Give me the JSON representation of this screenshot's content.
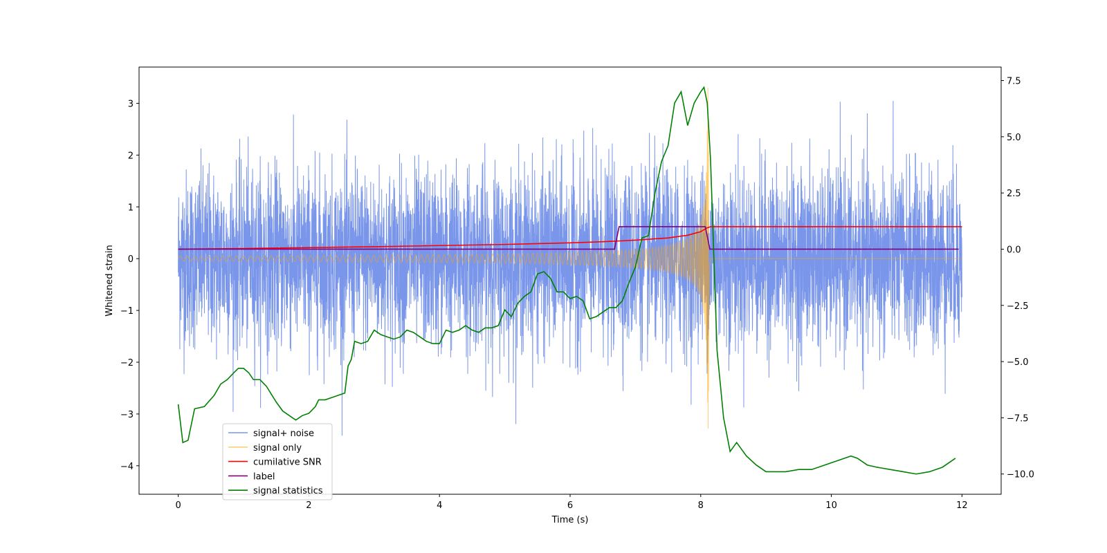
{
  "chart_data": {
    "type": "line",
    "xlabel": "Time (s)",
    "ylabel": "Whitened strain",
    "xlim": [
      -0.6,
      12.6
    ],
    "ylim": [
      -4.55,
      3.7
    ],
    "y2lim": [
      -10.9,
      8.1
    ],
    "xticks": [
      0,
      2,
      4,
      6,
      8,
      10,
      12
    ],
    "yticks": [
      -4,
      -3,
      -2,
      -1,
      0,
      1,
      2,
      3
    ],
    "y2ticks": [
      -10.0,
      -7.5,
      -5.0,
      -2.5,
      0.0,
      2.5,
      5.0,
      7.5
    ],
    "xtick_labels": [
      "0",
      "2",
      "4",
      "6",
      "8",
      "10",
      "12"
    ],
    "ytick_labels": [
      "−4",
      "−3",
      "−2",
      "−1",
      "0",
      "1",
      "2",
      "3"
    ],
    "y2tick_labels": [
      "−10.0",
      "−7.5",
      "−5.0",
      "−2.5",
      "0.0",
      "2.5",
      "5.0",
      "7.5"
    ],
    "legend_position": "lower-left",
    "grid": false,
    "series": [
      {
        "name": "signal+ noise",
        "color": "#4169e1",
        "axis": "left",
        "kind": "noisy_band",
        "x_range": [
          0,
          12
        ],
        "band_top_quiet": 1.9,
        "band_bottom_quiet": -1.9,
        "peak_max": 3.1,
        "peak_min": -3.8
      },
      {
        "name": "signal only",
        "color": "#ffa500",
        "axis": "left",
        "kind": "chirp",
        "x_range": [
          0,
          12
        ],
        "merger_time": 8.12,
        "peak": 3.3,
        "amplitude_start": 0.05
      },
      {
        "name": "cumilative SNR",
        "color": "#ff0000",
        "axis": "right",
        "x": [
          0,
          1,
          2,
          3,
          4,
          5,
          6,
          6.5,
          7,
          7.5,
          7.8,
          8.0,
          8.1,
          8.15,
          12
        ],
        "y": [
          0.0,
          0.03,
          0.07,
          0.11,
          0.16,
          0.21,
          0.28,
          0.33,
          0.4,
          0.5,
          0.62,
          0.78,
          0.95,
          1.0,
          1.0
        ]
      },
      {
        "name": "label",
        "color": "#800080",
        "axis": "right",
        "x": [
          0,
          6.68,
          6.75,
          8.07,
          8.14,
          11.95
        ],
        "y": [
          0.0,
          0.0,
          1.0,
          1.0,
          0.0,
          0.0
        ]
      },
      {
        "name": "signal statistics",
        "color": "#008000",
        "axis": "right",
        "x": [
          0,
          0.07,
          0.15,
          0.25,
          0.4,
          0.55,
          0.65,
          0.75,
          0.85,
          0.92,
          1.0,
          1.08,
          1.15,
          1.25,
          1.35,
          1.5,
          1.6,
          1.7,
          1.8,
          1.9,
          2.0,
          2.1,
          2.15,
          2.25,
          2.35,
          2.45,
          2.55,
          2.6,
          2.65,
          2.7,
          2.8,
          2.9,
          3.0,
          3.1,
          3.2,
          3.3,
          3.4,
          3.5,
          3.6,
          3.7,
          3.8,
          3.9,
          4.0,
          4.1,
          4.2,
          4.3,
          4.4,
          4.5,
          4.6,
          4.7,
          4.8,
          4.9,
          5.0,
          5.1,
          5.2,
          5.3,
          5.4,
          5.5,
          5.6,
          5.7,
          5.8,
          5.9,
          6.0,
          6.1,
          6.2,
          6.3,
          6.4,
          6.5,
          6.6,
          6.7,
          6.8,
          6.9,
          7.0,
          7.1,
          7.2,
          7.3,
          7.4,
          7.5,
          7.6,
          7.7,
          7.8,
          7.9,
          8.0,
          8.05,
          8.1,
          8.15,
          8.25,
          8.35,
          8.45,
          8.55,
          8.7,
          8.85,
          9.0,
          9.15,
          9.3,
          9.5,
          9.7,
          9.9,
          10.1,
          10.3,
          10.4,
          10.55,
          10.7,
          10.9,
          11.1,
          11.3,
          11.5,
          11.7,
          11.9
        ],
        "y": [
          -6.9,
          -8.6,
          -8.5,
          -7.1,
          -7.0,
          -6.5,
          -6.0,
          -5.8,
          -5.5,
          -5.3,
          -5.3,
          -5.5,
          -5.8,
          -5.8,
          -6.1,
          -6.8,
          -7.2,
          -7.4,
          -7.6,
          -7.4,
          -7.3,
          -7.0,
          -6.7,
          -6.7,
          -6.6,
          -6.5,
          -6.4,
          -5.2,
          -4.9,
          -4.1,
          -4.2,
          -4.1,
          -3.6,
          -3.8,
          -3.9,
          -4.0,
          -3.9,
          -3.6,
          -3.7,
          -3.9,
          -4.1,
          -4.2,
          -4.2,
          -3.6,
          -3.7,
          -3.6,
          -3.4,
          -3.6,
          -3.7,
          -3.5,
          -3.5,
          -3.4,
          -2.7,
          -3.0,
          -2.4,
          -2.1,
          -1.9,
          -1.1,
          -1.0,
          -1.3,
          -1.9,
          -1.9,
          -2.2,
          -2.1,
          -2.3,
          -3.1,
          -3.0,
          -2.8,
          -2.6,
          -2.6,
          -2.3,
          -1.5,
          -0.8,
          0.5,
          0.6,
          2.5,
          3.9,
          4.6,
          6.5,
          7.0,
          5.5,
          6.5,
          7.0,
          7.2,
          6.5,
          4.0,
          -4.5,
          -7.5,
          -9.0,
          -8.6,
          -9.2,
          -9.6,
          -9.9,
          -9.9,
          -9.9,
          -9.8,
          -9.8,
          -9.6,
          -9.4,
          -9.2,
          -9.3,
          -9.6,
          -9.7,
          -9.8,
          -9.9,
          -10.0,
          -9.9,
          -9.7,
          -9.3
        ]
      }
    ]
  }
}
